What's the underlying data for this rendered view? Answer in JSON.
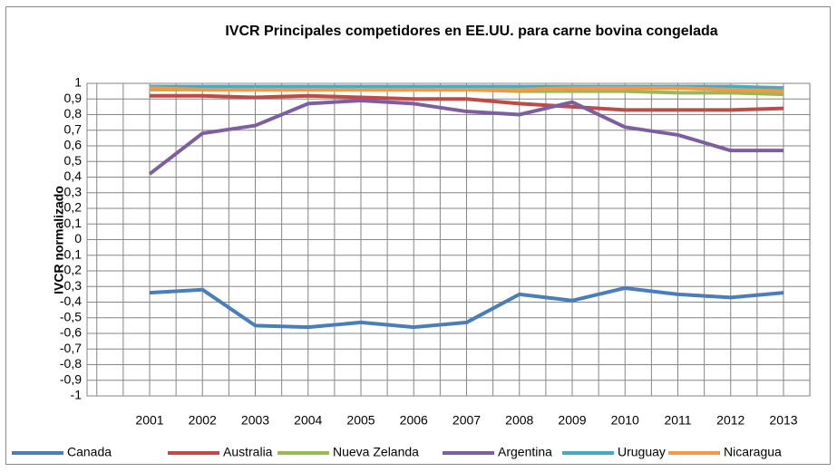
{
  "chart_data": {
    "type": "line",
    "title": "IVCR  Principales competidores en EE.UU. para carne bovina congelada",
    "y_label": "IVCR normalizado",
    "categories": [
      "2001",
      "2002",
      "2003",
      "2004",
      "2005",
      "2006",
      "2007",
      "2008",
      "2009",
      "2010",
      "2011",
      "2012",
      "2013"
    ],
    "series": [
      {
        "name": "Canada",
        "color": "#4a7ebb",
        "values": [
          -0.34,
          -0.32,
          -0.55,
          -0.56,
          -0.53,
          -0.56,
          -0.53,
          -0.35,
          -0.39,
          -0.31,
          -0.35,
          -0.37,
          -0.34
        ]
      },
      {
        "name": "Australia",
        "color": "#be4b48",
        "values": [
          0.92,
          0.92,
          0.91,
          0.92,
          0.91,
          0.9,
          0.9,
          0.87,
          0.85,
          0.83,
          0.83,
          0.83,
          0.84
        ]
      },
      {
        "name": "Nueva Zelanda",
        "color": "#98b954",
        "values": [
          0.96,
          0.96,
          0.96,
          0.96,
          0.96,
          0.96,
          0.96,
          0.95,
          0.95,
          0.95,
          0.94,
          0.94,
          0.93
        ]
      },
      {
        "name": "Argentina",
        "color": "#7d5fa0",
        "values": [
          0.42,
          0.68,
          0.73,
          0.87,
          0.89,
          0.87,
          0.82,
          0.8,
          0.88,
          0.72,
          0.67,
          0.57,
          0.57
        ]
      },
      {
        "name": "Uruguay",
        "color": "#46aac5",
        "values": [
          0.98,
          0.98,
          0.98,
          0.98,
          0.98,
          0.98,
          0.98,
          0.98,
          0.98,
          0.98,
          0.98,
          0.98,
          0.97
        ]
      },
      {
        "name": "Nicaragua",
        "color": "#f79646",
        "values": [
          0.97,
          0.96,
          0.96,
          0.96,
          0.96,
          0.96,
          0.96,
          0.96,
          0.97,
          0.97,
          0.97,
          0.96,
          0.95
        ]
      }
    ],
    "ylim": [
      -1,
      1
    ],
    "yticks": [
      1,
      {
        "value": 0.9,
        "label": "0,9"
      },
      {
        "value": 0.8,
        "label": "0,8"
      },
      {
        "value": 0.7,
        "label": "0,7"
      },
      {
        "value": 0.6,
        "label": "0,6"
      },
      {
        "value": 0.5,
        "label": "0,5"
      },
      {
        "value": 0.4,
        "label": "0,4"
      },
      {
        "value": 0.3,
        "label": "0,3"
      },
      {
        "value": 0.2,
        "label": "0,2"
      },
      {
        "value": 0.1,
        "label": "0,1"
      },
      0,
      {
        "value": -0.1,
        "label": "-0,1"
      },
      {
        "value": -0.2,
        "label": "-0,2"
      },
      {
        "value": -0.3,
        "label": "-0,3"
      },
      {
        "value": -0.4,
        "label": "-0,4"
      },
      {
        "value": -0.5,
        "label": "-0,5"
      },
      {
        "value": -0.6,
        "label": "-0,6"
      },
      {
        "value": -0.7,
        "label": "-0,7"
      },
      {
        "value": -0.8,
        "label": "-0,8"
      },
      {
        "value": -0.9,
        "label": "-0,9"
      },
      -1
    ],
    "grid": true,
    "legend": "bottom"
  }
}
